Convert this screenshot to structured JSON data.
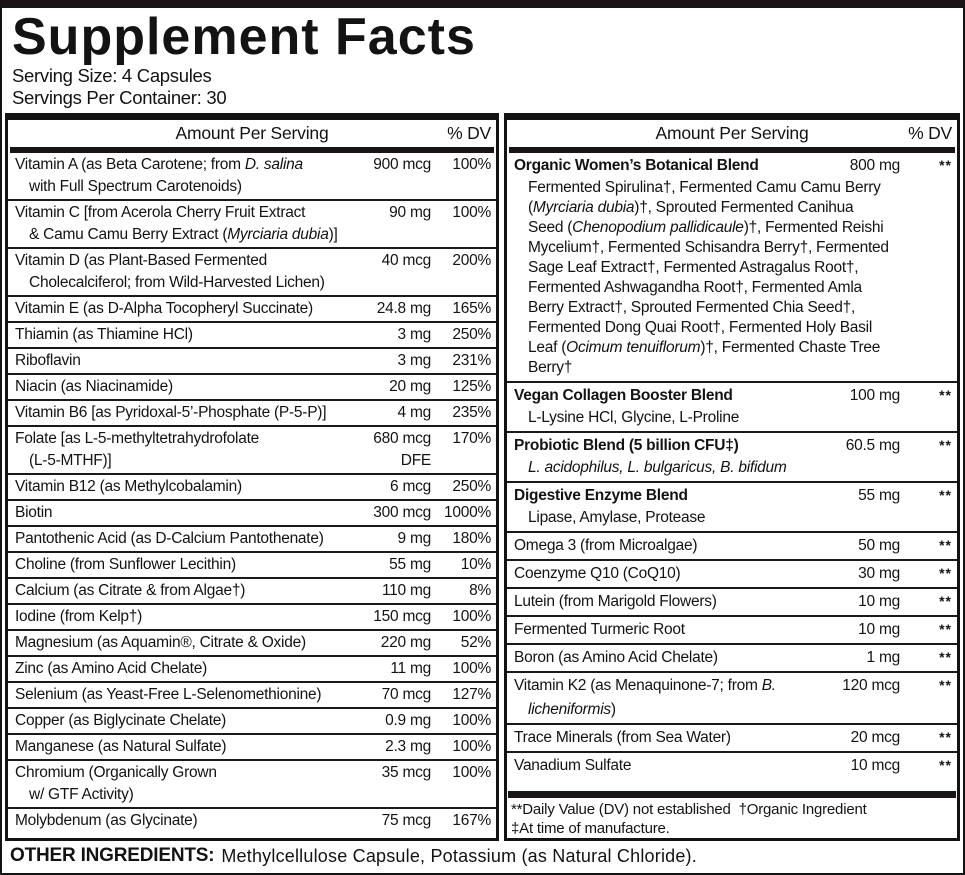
{
  "title": "Supplement Facts",
  "serving": {
    "size": "Serving Size: 4 Capsules",
    "per_container": "Servings Per Container: 30"
  },
  "column_header": {
    "amount": "Amount Per Serving",
    "dv": "% DV"
  },
  "left_rows": [
    {
      "name": [
        {
          "t": "Vitamin A (as Beta Carotene; from "
        },
        {
          "t": "D. salina",
          "i": true
        }
      ],
      "name2": [
        {
          "t": "with Full Spectrum Carotenoids)"
        }
      ],
      "amount": "900 mcg",
      "dv": "100%"
    },
    {
      "name": [
        {
          "t": "Vitamin C [from Acerola Cherry Fruit Extract"
        }
      ],
      "name2": [
        {
          "t": "& Camu Camu Berry Extract ("
        },
        {
          "t": "Myrciaria dubia",
          "i": true
        },
        {
          "t": ")]"
        }
      ],
      "amount": "90 mg",
      "dv": "100%"
    },
    {
      "name": [
        {
          "t": "Vitamin D (as Plant-Based Fermented"
        }
      ],
      "name2": [
        {
          "t": "Cholecalciferol; from Wild-Harvested Lichen)"
        }
      ],
      "amount": "40 mcg",
      "dv": "200%"
    },
    {
      "name": [
        {
          "t": "Vitamin E (as D-Alpha Tocopheryl Succinate)"
        }
      ],
      "amount": "24.8 mg",
      "dv": "165%"
    },
    {
      "name": [
        {
          "t": "Thiamin (as Thiamine HCl)"
        }
      ],
      "amount": "3 mg",
      "dv": "250%"
    },
    {
      "name": [
        {
          "t": "Riboflavin"
        }
      ],
      "amount": "3 mg",
      "dv": "231%"
    },
    {
      "name": [
        {
          "t": "Niacin (as Niacinamide)"
        }
      ],
      "amount": "20 mg",
      "dv": "125%"
    },
    {
      "name": [
        {
          "t": "Vitamin B6 [as Pyridoxal-5’-Phosphate (P-5-P)]"
        }
      ],
      "amount": "4 mg",
      "dv": "235%"
    },
    {
      "name": [
        {
          "t": "Folate [as L-5-methyltetrahydrofolate"
        }
      ],
      "name2": [
        {
          "t": "(L-5-MTHF)]"
        }
      ],
      "amount": "680 mcg",
      "amount2": "DFE",
      "dv": "170%"
    },
    {
      "name": [
        {
          "t": "Vitamin B12 (as Methylcobalamin)"
        }
      ],
      "amount": "6 mcg",
      "dv": "250%"
    },
    {
      "name": [
        {
          "t": "Biotin"
        }
      ],
      "amount": "300 mcg",
      "dv": "1000%"
    },
    {
      "name": [
        {
          "t": "Pantothenic Acid (as D-Calcium Pantothenate)"
        }
      ],
      "amount": "9 mg",
      "dv": "180%"
    },
    {
      "name": [
        {
          "t": "Choline (from Sunflower Lecithin)"
        }
      ],
      "amount": "55 mg",
      "dv": "10%"
    },
    {
      "name": [
        {
          "t": "Calcium (as Citrate & from Algae†)"
        }
      ],
      "amount": "110 mg",
      "dv": "8%"
    },
    {
      "name": [
        {
          "t": "Iodine (from Kelp†)"
        }
      ],
      "amount": "150 mcg",
      "dv": "100%"
    },
    {
      "name": [
        {
          "t": "Magnesium (as Aquamin®, Citrate & Oxide)"
        }
      ],
      "amount": "220 mg",
      "dv": "52%"
    },
    {
      "name": [
        {
          "t": "Zinc (as Amino Acid Chelate)"
        }
      ],
      "amount": "11 mg",
      "dv": "100%"
    },
    {
      "name": [
        {
          "t": "Selenium (as Yeast-Free L-Selenomethionine)"
        }
      ],
      "amount": "70 mcg",
      "dv": "127%"
    },
    {
      "name": [
        {
          "t": "Copper (as Biglycinate Chelate)"
        }
      ],
      "amount": "0.9 mg",
      "dv": "100%"
    },
    {
      "name": [
        {
          "t": "Manganese (as Natural Sulfate)"
        }
      ],
      "amount": "2.3 mg",
      "dv": "100%"
    },
    {
      "name": [
        {
          "t": "Chromium (Organically Grown"
        }
      ],
      "name2": [
        {
          "t": "w/ GTF Activity)"
        }
      ],
      "amount": "35 mcg",
      "dv": "100%"
    },
    {
      "name": [
        {
          "t": "Molybdenum (as Glycinate)"
        }
      ],
      "amount": "75 mcg",
      "dv": "167%"
    }
  ],
  "right_rows": [
    {
      "bold": true,
      "name": [
        {
          "t": "Organic Women’s Botanical Blend"
        }
      ],
      "amount": "800 mg",
      "dv": "**",
      "sub": [
        {
          "t": "Fermented Spirulina†, Fermented Camu Camu Berry ("
        },
        {
          "t": "Myrciaria dubia",
          "i": true
        },
        {
          "t": ")†, Sprouted Fermented Canihua Seed ("
        },
        {
          "t": "Chenopodium pallidicaule",
          "i": true
        },
        {
          "t": ")†, Fermented Reishi Mycelium†, Fermented Schisandra Berry†, Fermented Sage Leaf Extract†, Fermented Astragalus Root†, Fermented Ashwagandha Root†, Fermented Amla Berry Extract†, Sprouted Fermented Chia Seed†, Fermented Dong Quai Root†, Fermented Holy Basil Leaf ("
        },
        {
          "t": "Ocimum tenuiflorum",
          "i": true
        },
        {
          "t": ")†, Fermented Chaste Tree Berry†"
        }
      ]
    },
    {
      "bold": true,
      "name": [
        {
          "t": "Vegan Collagen Booster Blend"
        }
      ],
      "amount": "100 mg",
      "dv": "**",
      "sub": [
        {
          "t": "L-Lysine HCl, Glycine, L-Proline"
        }
      ]
    },
    {
      "bold": true,
      "name": [
        {
          "t": "Probiotic Blend (5 billion CFU‡)"
        }
      ],
      "amount": "60.5 mg",
      "dv": "**",
      "sub": [
        {
          "t": "L. acidophilus, L. bulgaricus, B. bifidum",
          "i": true
        }
      ]
    },
    {
      "bold": true,
      "name": [
        {
          "t": "Digestive Enzyme Blend"
        }
      ],
      "amount": "55 mg",
      "dv": "**",
      "sub": [
        {
          "t": "Lipase, Amylase, Protease"
        }
      ]
    },
    {
      "name": [
        {
          "t": "Omega 3 (from Microalgae)"
        }
      ],
      "amount": "50 mg",
      "dv": "**"
    },
    {
      "name": [
        {
          "t": "Coenzyme Q10 (CoQ10)"
        }
      ],
      "amount": "30 mg",
      "dv": "**"
    },
    {
      "name": [
        {
          "t": "Lutein (from Marigold Flowers)"
        }
      ],
      "amount": "10 mg",
      "dv": "**"
    },
    {
      "name": [
        {
          "t": "Fermented Turmeric Root"
        }
      ],
      "amount": "10 mg",
      "dv": "**"
    },
    {
      "name": [
        {
          "t": "Boron (as Amino Acid Chelate)"
        }
      ],
      "amount": "1 mg",
      "dv": "**"
    },
    {
      "name": [
        {
          "t": "Vitamin K2 (as Menaquinone-7; from "
        },
        {
          "t": "B.",
          "i": true
        }
      ],
      "name2": [
        {
          "t": "licheniformis",
          "i": true
        },
        {
          "t": ")"
        }
      ],
      "amount": "120 mcg",
      "dv": "**"
    },
    {
      "name": [
        {
          "t": "Trace Minerals (from Sea Water)"
        }
      ],
      "amount": "20 mcg",
      "dv": "**"
    },
    {
      "name": [
        {
          "t": "Vanadium Sulfate"
        }
      ],
      "amount": "10 mcg",
      "dv": "**"
    }
  ],
  "footnotes": [
    "**Daily Value (DV) not established  †Organic Ingredient",
    "‡At time of manufacture."
  ],
  "other_ingredients": {
    "label": "OTHER INGREDIENTS:",
    "text": "Methylcellulose Capsule, Potassium (as Natural Chloride)."
  },
  "colors": {
    "ink": "#131313",
    "background": "#ffffff"
  }
}
